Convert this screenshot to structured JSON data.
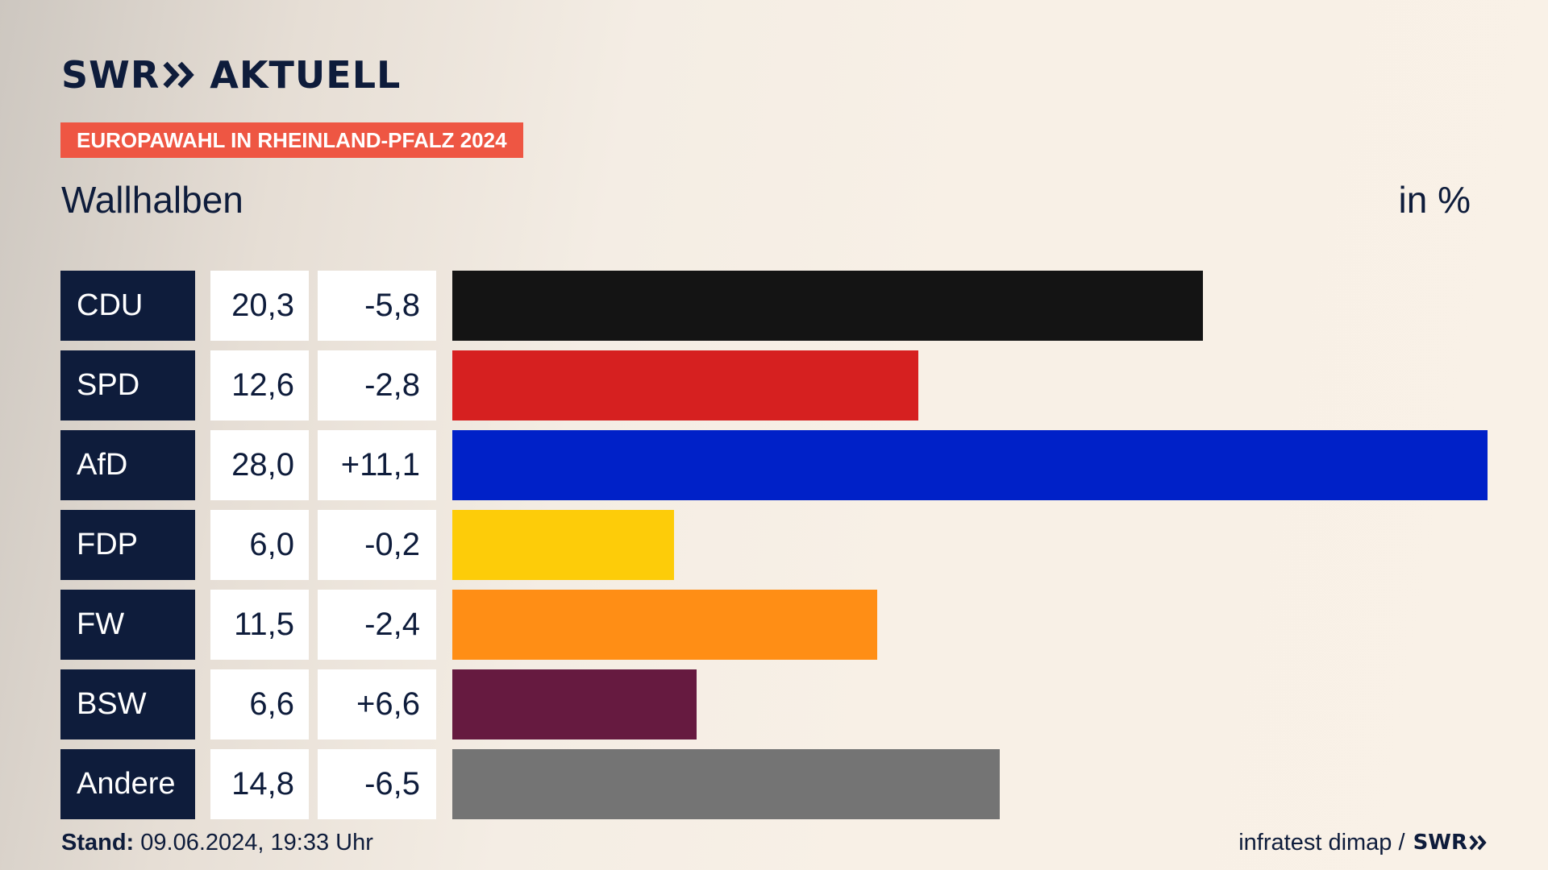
{
  "header": {
    "logo_left": "SWR",
    "logo_right": "AKTUELL",
    "tag": "EUROPAWAHL IN RHEINLAND-PFALZ 2024",
    "subtitle": "Wallhalben",
    "unit": "in %"
  },
  "chart_data": {
    "type": "bar",
    "orientation": "horizontal",
    "title": "Wallhalben",
    "unit": "in %",
    "xlim": [
      0,
      28.0
    ],
    "categories": [
      "CDU",
      "SPD",
      "AfD",
      "FDP",
      "FW",
      "BSW",
      "Andere"
    ],
    "values": [
      20.3,
      12.6,
      28.0,
      6.0,
      11.5,
      6.6,
      14.8
    ],
    "rows": [
      {
        "party": "CDU",
        "value": 20.3,
        "value_label": "20,3",
        "diff_label": "-5,8",
        "color": "#141414"
      },
      {
        "party": "SPD",
        "value": 12.6,
        "value_label": "12,6",
        "diff_label": "-2,8",
        "color": "#d62020"
      },
      {
        "party": "AfD",
        "value": 28.0,
        "value_label": "28,0",
        "diff_label": "+11,1",
        "color": "#0021c8"
      },
      {
        "party": "FDP",
        "value": 6.0,
        "value_label": "6,0",
        "diff_label": "-0,2",
        "color": "#fdcc09"
      },
      {
        "party": "FW",
        "value": 11.5,
        "value_label": "11,5",
        "diff_label": "-2,4",
        "color": "#ff8e15"
      },
      {
        "party": "BSW",
        "value": 6.6,
        "value_label": "6,6",
        "diff_label": "+6,6",
        "color": "#661a40"
      },
      {
        "party": "Andere",
        "value": 14.8,
        "value_label": "14,8",
        "diff_label": "-6,5",
        "color": "#747474"
      }
    ]
  },
  "footer": {
    "stand_label": "Stand:",
    "stand_value": "09.06.2024, 19:33 Uhr",
    "source": "infratest dimap /",
    "source_logo": "SWR"
  }
}
